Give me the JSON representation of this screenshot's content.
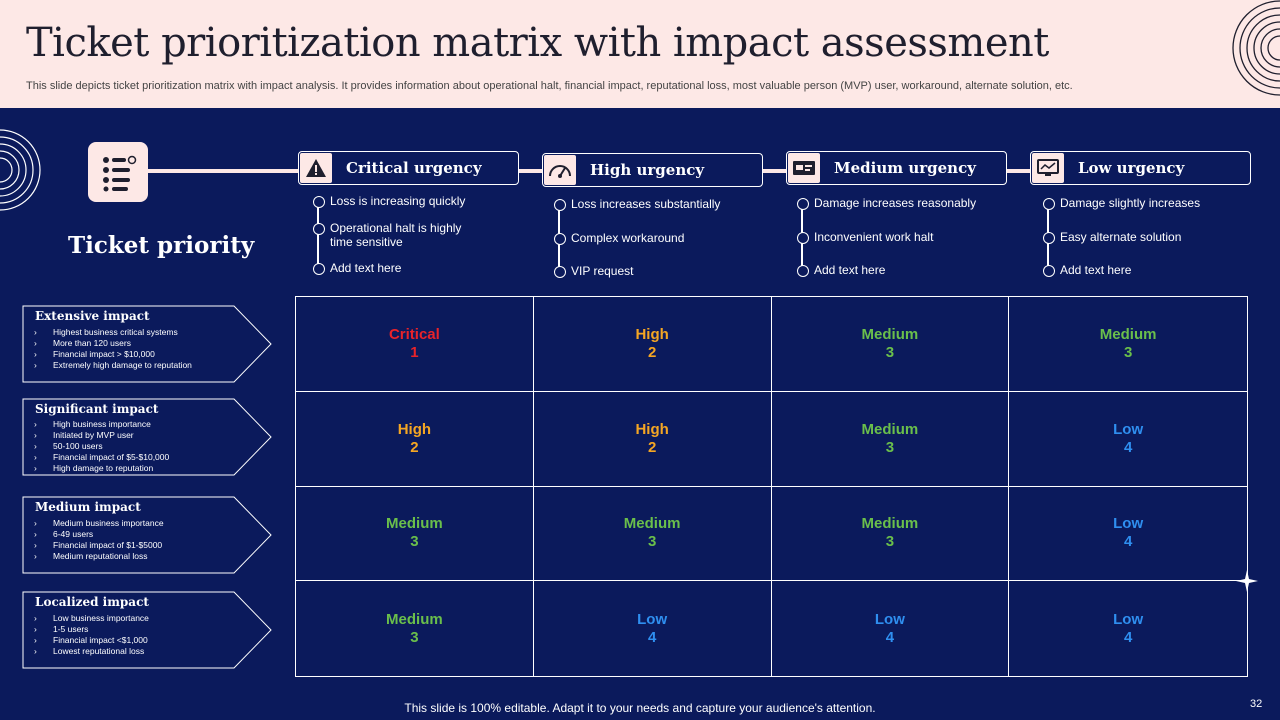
{
  "header": {
    "title": "Ticket prioritization matrix with impact assessment",
    "subtitle": "This slide depicts ticket prioritization matrix with impact analysis. It provides information about operational halt, financial impact, reputational loss, most valuable person (MVP) user, workaround, alternate solution, etc."
  },
  "ticket_priority_label": "Ticket priority",
  "urgency": [
    {
      "label": "Critical urgency",
      "icon": "warning-icon",
      "bullets": [
        "Loss is increasing quickly",
        "Operational halt is highly",
        "time sensitive",
        "Add text here"
      ]
    },
    {
      "label": "High urgency",
      "icon": "gauge-icon",
      "bullets": [
        "Loss increases substantially",
        "Complex workaround",
        "VIP request"
      ]
    },
    {
      "label": "Medium urgency",
      "icon": "card-icon",
      "bullets": [
        "Damage increases reasonably",
        "Inconvenient work halt",
        "Add text here"
      ]
    },
    {
      "label": "Low urgency",
      "icon": "monitor-icon",
      "bullets": [
        "Damage slightly increases",
        "Easy alternate solution",
        "Add text here"
      ]
    }
  ],
  "impacts": [
    {
      "title": "Extensive impact",
      "items": [
        "Highest business critical systems",
        "More than 120 users",
        "Financial impact > $10,000",
        "Extremely high damage to reputation"
      ]
    },
    {
      "title": "Significant impact",
      "items": [
        "High business importance",
        "Initiated by MVP user",
        "50-100 users",
        "Financial impact of $5-$10,000",
        "High damage to reputation"
      ]
    },
    {
      "title": "Medium impact",
      "items": [
        "Medium business importance",
        "6-49 users",
        "Financial impact of $1-$5000",
        "Medium reputational loss"
      ]
    },
    {
      "title": "Localized impact",
      "items": [
        "Low business importance",
        "1-5 users",
        "Financial impact <$1,000",
        "Lowest reputational loss"
      ]
    }
  ],
  "matrix": [
    [
      {
        "label": "Critical",
        "num": "1",
        "color": "#e8232a"
      },
      {
        "label": "High",
        "num": "2",
        "color": "#f5a623"
      },
      {
        "label": "Medium",
        "num": "3",
        "color": "#6abf4b"
      },
      {
        "label": "Medium",
        "num": "3",
        "color": "#6abf4b"
      }
    ],
    [
      {
        "label": "High",
        "num": "2",
        "color": "#f5a623"
      },
      {
        "label": "High",
        "num": "2",
        "color": "#f5a623"
      },
      {
        "label": "Medium",
        "num": "3",
        "color": "#6abf4b"
      },
      {
        "label": "Low",
        "num": "4",
        "color": "#2f8ff0"
      }
    ],
    [
      {
        "label": "Medium",
        "num": "3",
        "color": "#6abf4b"
      },
      {
        "label": "Medium",
        "num": "3",
        "color": "#6abf4b"
      },
      {
        "label": "Medium",
        "num": "3",
        "color": "#6abf4b"
      },
      {
        "label": "Low",
        "num": "4",
        "color": "#2f8ff0"
      }
    ],
    [
      {
        "label": "Medium",
        "num": "3",
        "color": "#6abf4b"
      },
      {
        "label": "Low",
        "num": "4",
        "color": "#2f8ff0"
      },
      {
        "label": "Low",
        "num": "4",
        "color": "#2f8ff0"
      },
      {
        "label": "Low",
        "num": "4",
        "color": "#2f8ff0"
      }
    ]
  ],
  "footer": "This slide is 100% editable. Adapt it to your needs and capture your audience's attention.",
  "page_number": "32",
  "colors": {
    "background": "#0b1a5c",
    "header_bg": "#fde8e6",
    "critical": "#e8232a",
    "high": "#f5a623",
    "medium": "#6abf4b",
    "low": "#2f8ff0"
  }
}
